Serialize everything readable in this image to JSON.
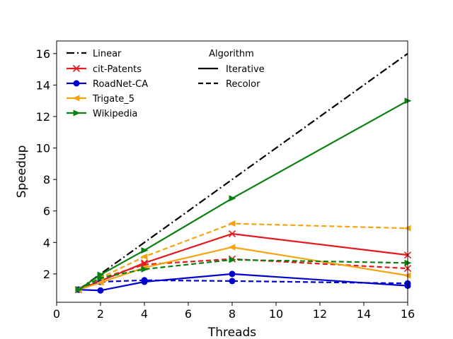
{
  "chart_data": {
    "type": "line",
    "xlabel": "Threads",
    "ylabel": "Speedup",
    "xlim": [
      0,
      16
    ],
    "ylim": [
      0.2,
      16.8
    ],
    "xticks": [
      0,
      2,
      4,
      6,
      8,
      10,
      12,
      14,
      16
    ],
    "yticks": [
      2,
      4,
      6,
      8,
      10,
      12,
      14,
      16
    ],
    "grid": false,
    "legend_position": "top-left",
    "legend_title": "Algorithm",
    "style_legend": [
      {
        "label": "Iterative",
        "dash": "solid"
      },
      {
        "label": "Recolor",
        "dash": "dashed"
      }
    ],
    "x": [
      1,
      2,
      4,
      8,
      16
    ],
    "linear": {
      "name": "Linear",
      "color": "#000000",
      "values": [
        1,
        2,
        4,
        8,
        16
      ]
    },
    "series": [
      {
        "name": "cit-Patents",
        "color": "#e41a1c",
        "marker": "x",
        "iterative": [
          1.0,
          1.55,
          2.7,
          4.55,
          3.2
        ],
        "recolor": [
          1.0,
          1.7,
          2.6,
          2.95,
          2.35
        ]
      },
      {
        "name": "RoadNet-CA",
        "color": "#0000cc",
        "marker": "circle",
        "iterative": [
          1.0,
          0.95,
          1.5,
          2.0,
          1.25
        ],
        "recolor": [
          1.0,
          1.5,
          1.6,
          1.55,
          1.4
        ]
      },
      {
        "name": "Trigate_5",
        "color": "#f5a30f",
        "marker": "triangle-left",
        "iterative": [
          1.0,
          1.45,
          2.4,
          3.7,
          1.9
        ],
        "recolor": [
          1.0,
          1.75,
          3.1,
          5.2,
          4.9
        ]
      },
      {
        "name": "Wikipedia",
        "color": "#0a8010",
        "marker": "triangle-right",
        "iterative": [
          1.0,
          1.95,
          3.5,
          6.8,
          13.0
        ],
        "recolor": [
          1.0,
          1.75,
          2.3,
          2.9,
          2.7
        ]
      }
    ]
  }
}
